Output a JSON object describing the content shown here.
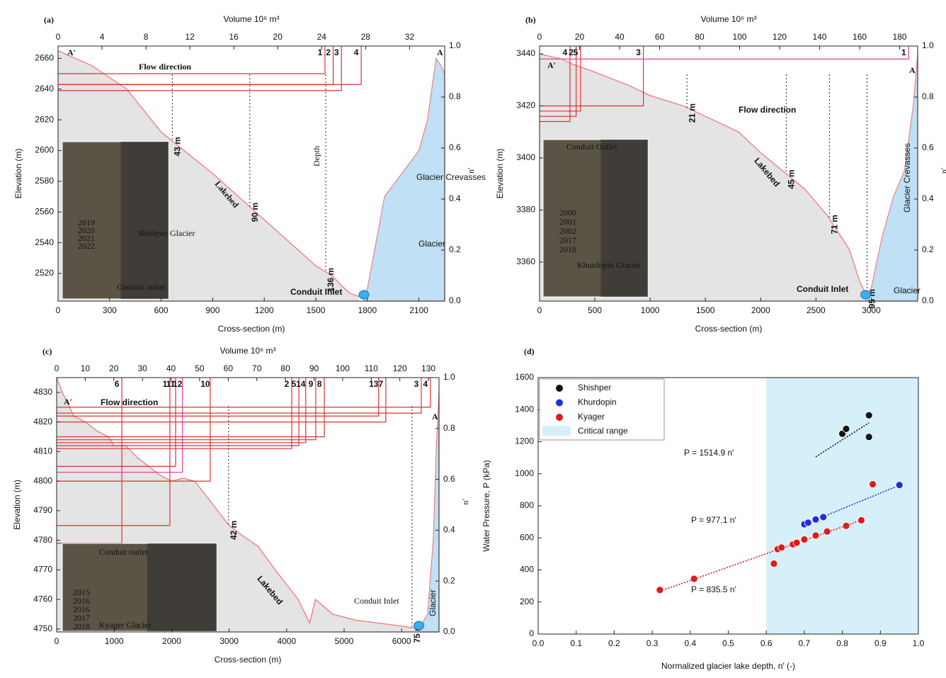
{
  "chart_data": [
    {
      "type": "profile",
      "panel_label": "(a)",
      "x_label": "Cross-section (m)",
      "y_label": "Elevation (m)",
      "x2_label": "Volume 10⁶ m³",
      "y2_label": "n′",
      "xlim": [
        0,
        2250
      ],
      "xticks": [
        0,
        300,
        600,
        900,
        1200,
        1500,
        1800,
        2100
      ],
      "ylim": [
        2502,
        2668
      ],
      "yticks": [
        2520,
        2540,
        2560,
        2580,
        2600,
        2620,
        2640,
        2660
      ],
      "x2lim": [
        0,
        35.2
      ],
      "x2ticks": [
        0,
        4,
        8,
        12,
        16,
        20,
        24,
        28,
        32
      ],
      "y2lim": [
        0,
        1
      ],
      "y2ticks": [
        {
          "value": 0,
          "label": "0.0"
        },
        0.2,
        0.4,
        0.6,
        0.8,
        {
          "value": 1,
          "label": "1.0"
        }
      ],
      "profile": {
        "color": "#f08080",
        "x": [
          0,
          200,
          400,
          600,
          700,
          900,
          1100,
          1300,
          1500,
          1600,
          1650,
          1700,
          1750
        ],
        "values": [
          2665,
          2655,
          2640,
          2612,
          2603,
          2585,
          2565,
          2545,
          2525,
          2518,
          2512,
          2507,
          2505
        ]
      },
      "glacier": {
        "color": "#bfe0f5",
        "x": [
          1780,
          1800,
          1850,
          1900,
          2000,
          2100,
          2150,
          2200,
          2230,
          2250
        ],
        "values": [
          2505,
          2510,
          2540,
          2570,
          2585,
          2600,
          2620,
          2660,
          2655,
          2650
        ]
      },
      "volume_lines": [
        {
          "label": "1",
          "volume": 24.3,
          "elevation": 2650,
          "color": "#e03030"
        },
        {
          "label": "2",
          "volume": 25.05,
          "elevation": 2643,
          "color": "#e03030"
        },
        {
          "label": "3",
          "volume": 25.8,
          "elevation": 2639,
          "color": "#e03030"
        },
        {
          "label": "4",
          "volume": 27.6,
          "elevation": 2643,
          "color": "#e03030"
        }
      ],
      "depth_markers": [
        {
          "label": "43 m",
          "x": 665
        },
        {
          "label": "90 m",
          "x": 1116
        },
        {
          "label": "136 m",
          "x": 1558
        }
      ],
      "annotations": [
        "A′",
        "A",
        "Flow direction",
        "Lakebed",
        "Depth",
        "Glacier Crevasses",
        "Glacier",
        "Conduit Inlet"
      ],
      "inset": {
        "labels": [
          "2019",
          "2020",
          "2021",
          "2022",
          "Shishper Glacier",
          "Conduit outlet"
        ]
      }
    },
    {
      "type": "profile",
      "panel_label": "(b)",
      "x_label": "Cross-section (m)",
      "y_label": "Elevation (m)",
      "x2_label": "Volume 10⁶ m³",
      "y2_label": "n′",
      "xlim": [
        0,
        3420
      ],
      "xticks": [
        0,
        500,
        1000,
        1500,
        2000,
        2500,
        3000
      ],
      "ylim": [
        3345,
        3443
      ],
      "yticks": [
        3360,
        3380,
        3400,
        3420,
        3440
      ],
      "x2lim": [
        0,
        189
      ],
      "x2ticks": [
        0,
        20,
        40,
        60,
        80,
        100,
        120,
        140,
        160,
        180
      ],
      "y2lim": [
        0,
        1
      ],
      "y2ticks": [
        {
          "value": 0,
          "label": "0.0"
        },
        0.2,
        0.4,
        0.6,
        0.8,
        {
          "value": 1,
          "label": "1.0"
        }
      ],
      "profile": {
        "color": "#f08080",
        "x": [
          0,
          200,
          300,
          500,
          800,
          1000,
          1300,
          1600,
          1800,
          2000,
          2200,
          2400,
          2600,
          2800,
          2900,
          2950
        ],
        "values": [
          3440,
          3438,
          3436,
          3433,
          3428,
          3424,
          3420,
          3414,
          3410,
          3402,
          3395,
          3388,
          3378,
          3365,
          3352,
          3348
        ]
      },
      "glacier": {
        "color": "#bfe0f5",
        "x": [
          2950,
          3000,
          3100,
          3200,
          3300,
          3380,
          3420
        ],
        "values": [
          3347,
          3350,
          3370,
          3385,
          3395,
          3420,
          3440
        ]
      },
      "volume_lines": [
        {
          "label": "4",
          "volume": 15.2,
          "elevation": 3414,
          "color": "#e03030"
        },
        {
          "label": "2",
          "volume": 18.3,
          "elevation": 3416,
          "color": "#e03030"
        },
        {
          "label": "5",
          "volume": 20.5,
          "elevation": 3418,
          "color": "#e03030"
        },
        {
          "label": "3",
          "volume": 51.9,
          "elevation": 3420,
          "color": "#e03030"
        },
        {
          "label": "1",
          "volume": 184.5,
          "elevation": 3438,
          "color": "#e040a0"
        }
      ],
      "depth_markers": [
        {
          "label": "21 m",
          "x": 1333
        },
        {
          "label": "45 m",
          "x": 2231
        },
        {
          "label": "71 m",
          "x": 2622
        },
        {
          "label": "95 m",
          "x": 2962
        }
      ],
      "annotations": [
        "A′",
        "A",
        "Flow direction",
        "Lakebed",
        "Glacier Crevasses",
        "Glacier",
        "Conduit Inlet"
      ],
      "inset": {
        "labels": [
          "Conduit Outlet",
          "2000",
          "2001",
          "2002",
          "2017",
          "2018",
          "Khurdopin Glacier"
        ]
      }
    },
    {
      "type": "profile",
      "panel_label": "(c)",
      "x_label": "Cross-section (m)",
      "y_label": "Elevation (m)",
      "x2_label": "Volume 10⁶ m³",
      "y2_label": "n′",
      "xlim": [
        0,
        6650
      ],
      "xticks": [
        0,
        1000,
        2000,
        3000,
        4000,
        5000,
        6000
      ],
      "ylim": [
        4749,
        4835
      ],
      "yticks": [
        4750,
        4760,
        4770,
        4780,
        4790,
        4800,
        4810,
        4820,
        4830
      ],
      "x2lim": [
        0,
        133.7
      ],
      "x2ticks": [
        0,
        10,
        20,
        30,
        40,
        50,
        60,
        70,
        80,
        90,
        100,
        110,
        120,
        130
      ],
      "y2lim": [
        0,
        1
      ],
      "y2ticks": [
        {
          "value": 0,
          "label": "0.0"
        },
        0.2,
        0.4,
        0.6,
        0.8,
        {
          "value": 1,
          "label": "1.0"
        }
      ],
      "profile": {
        "color": "#f08080",
        "x": [
          0,
          100,
          300,
          500,
          700,
          900,
          1000,
          1200,
          1400,
          1600,
          1800,
          2000,
          2200,
          2400,
          2600,
          2800,
          3000,
          3200,
          3500,
          3800,
          4000,
          4200,
          4400,
          4500,
          4800,
          5200,
          5600,
          6000,
          6300
        ],
        "values": [
          4835,
          4830,
          4822,
          4820,
          4817,
          4815,
          4812,
          4812,
          4808,
          4805,
          4802,
          4800,
          4801,
          4800,
          4795,
          4790,
          4785,
          4782,
          4778,
          4770,
          4765,
          4760,
          4752,
          4760,
          4755,
          4753,
          4752,
          4751,
          4750
        ]
      },
      "glacier": {
        "color": "#bfe0f5",
        "x": [
          6300,
          6450,
          6550,
          6600,
          6650
        ],
        "values": [
          4750,
          4755,
          4780,
          4810,
          4830
        ]
      },
      "volume_lines": [
        {
          "label": "6",
          "volume": 22.8,
          "elevation": 4779,
          "color": "#e03030"
        },
        {
          "label": "1",
          "volume": 39.6,
          "elevation": 4785,
          "color": "#e03030"
        },
        {
          "label": "11",
          "volume": 41.6,
          "elevation": 4805,
          "color": "#e03030"
        },
        {
          "label": "12",
          "volume": 44,
          "elevation": 4803,
          "color": "#e040a0"
        },
        {
          "label": "10",
          "volume": 53.7,
          "elevation": 4800,
          "color": "#e03030"
        },
        {
          "label": "2",
          "volume": 82.2,
          "elevation": 4811,
          "color": "#e03030"
        },
        {
          "label": "5",
          "volume": 84.7,
          "elevation": 4812,
          "color": "#e03030"
        },
        {
          "label": "14",
          "volume": 87.1,
          "elevation": 4813,
          "color": "#e03030"
        },
        {
          "label": "9",
          "volume": 90.6,
          "elevation": 4814,
          "color": "#e03030"
        },
        {
          "label": "8",
          "volume": 93.6,
          "elevation": 4815,
          "color": "#e03030"
        },
        {
          "label": "13",
          "volume": 112.6,
          "elevation": 4822,
          "color": "#e03030"
        },
        {
          "label": "7",
          "volume": 115.1,
          "elevation": 4820,
          "color": "#e03030"
        },
        {
          "label": "3",
          "volume": 127.5,
          "elevation": 4823,
          "color": "#e03030"
        },
        {
          "label": "4",
          "volume": 130.7,
          "elevation": 4825,
          "color": "#e03030"
        }
      ],
      "depth_markers": [
        {
          "label": "42 m",
          "x": 2990
        },
        {
          "label": "75 m",
          "x": 6180
        }
      ],
      "annotations": [
        "A′",
        "A",
        "Flow direction",
        "Lakebed",
        "Conduit Inlet",
        "Glacier"
      ],
      "inset": {
        "labels": [
          "Conduit outlet",
          "2015",
          "2016",
          "2016",
          "2017",
          "2018",
          "Kyager Glacier"
        ]
      }
    },
    {
      "type": "scatter",
      "panel_label": "(d)",
      "x_label": "Normalized glacier lake depth, n′ (-)",
      "y_label": "Water Pressure, P (kPa)",
      "xlim": [
        0,
        1
      ],
      "xticks": [
        {
          "value": 0,
          "label": "0.0"
        },
        0.1,
        0.2,
        0.3,
        0.4,
        0.5,
        0.6,
        0.7,
        0.8,
        0.9,
        {
          "value": 1,
          "label": "1.0"
        }
      ],
      "ylim": [
        0,
        1600
      ],
      "yticks": [
        0,
        200,
        400,
        600,
        800,
        1000,
        1200,
        1400,
        1600
      ],
      "shaded_range": {
        "name": "Critical range",
        "x": [
          0.6,
          1.0
        ],
        "color": "#d6f0fa"
      },
      "legend": "upper left",
      "series": [
        {
          "name": "Shishper",
          "color": "#111111",
          "x": [
            0.8,
            0.81,
            0.87,
            0.87
          ],
          "values": [
            1250,
            1280,
            1365,
            1230
          ]
        },
        {
          "name": "Khurdopin",
          "color": "#1f2fe0",
          "x": [
            0.7,
            0.71,
            0.73,
            0.75,
            0.95
          ],
          "values": [
            685,
            695,
            715,
            730,
            930
          ]
        },
        {
          "name": "Kyager",
          "color": "#e01a1a",
          "x": [
            0.32,
            0.41,
            0.62,
            0.63,
            0.64,
            0.67,
            0.68,
            0.7,
            0.73,
            0.76,
            0.81,
            0.85,
            0.88
          ],
          "values": [
            275,
            345,
            440,
            530,
            540,
            560,
            570,
            590,
            615,
            640,
            675,
            710,
            935
          ]
        }
      ],
      "fits": [
        {
          "label": "P = 1514.9 n′",
          "slope": 1514.9,
          "x": [
            0.73,
            0.87
          ],
          "color": "#111111"
        },
        {
          "label": "P = 977.1 n′",
          "slope": 977.1,
          "x": [
            0.7,
            0.95
          ],
          "color": "#1f2fe0"
        },
        {
          "label": "P = 835.5 n′",
          "slope": 835.5,
          "x": [
            0.32,
            0.85
          ],
          "color": "#e01a1a"
        }
      ]
    }
  ]
}
